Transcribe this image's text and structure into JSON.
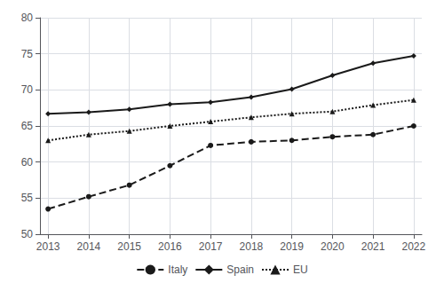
{
  "chart_data": {
    "type": "line",
    "x": [
      2013,
      2014,
      2015,
      2016,
      2017,
      2018,
      2019,
      2020,
      2021,
      2022
    ],
    "series": [
      {
        "name": "Italy",
        "color": "#1a1a1a",
        "line_style": "dashed",
        "marker": "circle",
        "values": [
          53.5,
          55.2,
          56.8,
          59.5,
          62.3,
          62.8,
          63.0,
          63.5,
          63.8,
          65.0
        ]
      },
      {
        "name": "Spain",
        "color": "#1a1a1a",
        "line_style": "solid",
        "marker": "diamond",
        "values": [
          66.7,
          66.9,
          67.3,
          68.0,
          68.3,
          69.0,
          70.1,
          72.0,
          73.7,
          74.7
        ]
      },
      {
        "name": "EU",
        "color": "#1a1a1a",
        "line_style": "dotted",
        "marker": "triangle",
        "values": [
          63.0,
          63.8,
          64.3,
          65.0,
          65.6,
          66.2,
          66.7,
          67.0,
          67.9,
          68.6
        ]
      }
    ],
    "xlim": [
      2012.8,
      2022.2
    ],
    "xticks": [
      2013,
      2014,
      2015,
      2016,
      2017,
      2018,
      2019,
      2020,
      2021,
      2022
    ],
    "ylim": [
      50,
      80
    ],
    "yticks": [
      50,
      55,
      60,
      65,
      70,
      75,
      80
    ],
    "grid": true,
    "legend": "bottom"
  }
}
